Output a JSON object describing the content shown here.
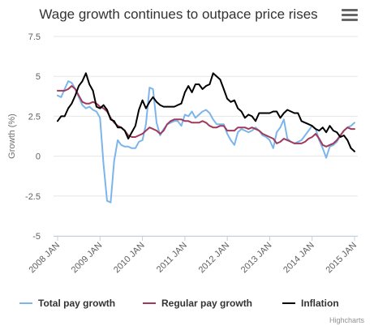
{
  "chart_data": {
    "type": "line",
    "title": "Wage growth continues to outpace price rises",
    "ylabel": "Growth (%)",
    "ylim": [
      -5,
      7.5
    ],
    "y_ticks": [
      "-5",
      "-2.5",
      "0",
      "2.5",
      "5",
      "7.5"
    ],
    "x_ticks": [
      "2008 JAN",
      "2009 JAN",
      "2010 JAN",
      "2011 JAN",
      "2012 JAN",
      "2013 JAN",
      "2014 JAN",
      "2015 JAN"
    ],
    "xlim": [
      "2008-01",
      "2015-01"
    ],
    "grid": true,
    "legend_position": "bottom",
    "credits": "Highcharts",
    "x": [
      "2008-01",
      "2008-02",
      "2008-03",
      "2008-04",
      "2008-05",
      "2008-06",
      "2008-07",
      "2008-08",
      "2008-09",
      "2008-10",
      "2008-11",
      "2008-12",
      "2009-01",
      "2009-02",
      "2009-03",
      "2009-04",
      "2009-05",
      "2009-06",
      "2009-07",
      "2009-08",
      "2009-09",
      "2009-10",
      "2009-11",
      "2009-12",
      "2010-01",
      "2010-02",
      "2010-03",
      "2010-04",
      "2010-05",
      "2010-06",
      "2010-07",
      "2010-08",
      "2010-09",
      "2010-10",
      "2010-11",
      "2010-12",
      "2011-01",
      "2011-02",
      "2011-03",
      "2011-04",
      "2011-05",
      "2011-06",
      "2011-07",
      "2011-08",
      "2011-09",
      "2011-10",
      "2011-11",
      "2011-12",
      "2012-01",
      "2012-02",
      "2012-03",
      "2012-04",
      "2012-05",
      "2012-06",
      "2012-07",
      "2012-08",
      "2012-09",
      "2012-10",
      "2012-11",
      "2012-12",
      "2013-01",
      "2013-02",
      "2013-03",
      "2013-04",
      "2013-05",
      "2013-06",
      "2013-07",
      "2013-08",
      "2013-09",
      "2013-10",
      "2013-11",
      "2013-12",
      "2014-01",
      "2014-02",
      "2014-03",
      "2014-04",
      "2014-05",
      "2014-06",
      "2014-07",
      "2014-08",
      "2014-09",
      "2014-10",
      "2014-11",
      "2014-12",
      "2015-01"
    ],
    "series": [
      {
        "name": "Total pay growth",
        "color": "#7cb5ec",
        "values": [
          3.8,
          3.7,
          4.2,
          4.7,
          4.6,
          4.2,
          3.7,
          3.2,
          3.0,
          3.1,
          2.9,
          2.8,
          2.4,
          -0.5,
          -2.8,
          -2.9,
          -0.3,
          1.0,
          0.7,
          0.6,
          0.6,
          0.5,
          0.5,
          0.9,
          1.0,
          2.0,
          4.3,
          4.2,
          2.1,
          1.3,
          1.7,
          2.0,
          2.1,
          2.2,
          2.2,
          1.9,
          2.6,
          2.5,
          2.8,
          2.4,
          2.6,
          2.8,
          2.9,
          2.7,
          2.3,
          2.0,
          2.0,
          2.0,
          1.4,
          1.0,
          0.7,
          1.5,
          1.7,
          1.6,
          1.5,
          1.6,
          1.8,
          1.6,
          1.3,
          1.2,
          1.0,
          0.5,
          1.5,
          1.8,
          2.3,
          1.1,
          0.9,
          0.8,
          0.9,
          1.0,
          1.3,
          1.6,
          1.9,
          1.7,
          1.0,
          0.5,
          -0.1,
          0.6,
          0.7,
          0.9,
          1.3,
          1.6,
          1.8,
          1.9,
          2.1
        ]
      },
      {
        "name": "Regular pay growth",
        "color": "#a03a5c",
        "values": [
          4.1,
          4.1,
          4.1,
          4.2,
          4.4,
          4.2,
          3.8,
          3.4,
          3.3,
          3.3,
          3.4,
          3.3,
          3.1,
          3.0,
          2.8,
          2.4,
          2.1,
          1.9,
          1.8,
          1.6,
          1.3,
          1.2,
          1.2,
          1.3,
          1.4,
          1.6,
          1.8,
          1.7,
          1.6,
          1.4,
          1.6,
          2.0,
          2.2,
          2.3,
          2.3,
          2.3,
          2.2,
          2.2,
          2.1,
          2.1,
          2.1,
          2.2,
          2.1,
          1.9,
          1.8,
          1.8,
          1.9,
          1.9,
          1.6,
          1.6,
          1.6,
          1.8,
          1.8,
          1.8,
          1.7,
          1.8,
          1.7,
          1.6,
          1.4,
          1.3,
          1.2,
          1.1,
          0.8,
          0.9,
          1.1,
          1.0,
          0.9,
          0.8,
          0.8,
          0.8,
          0.9,
          1.1,
          1.2,
          1.4,
          1.1,
          0.7,
          0.6,
          0.7,
          0.8,
          1.0,
          1.3,
          1.6,
          1.8,
          1.7,
          1.7
        ]
      },
      {
        "name": "Inflation",
        "color": "#000000",
        "values": [
          2.2,
          2.5,
          2.5,
          3.0,
          3.3,
          3.8,
          4.4,
          4.7,
          5.2,
          4.5,
          4.1,
          3.1,
          3.0,
          3.2,
          2.9,
          2.3,
          2.2,
          1.8,
          1.8,
          1.6,
          1.1,
          1.5,
          1.9,
          2.9,
          3.5,
          3.0,
          3.4,
          3.7,
          3.4,
          3.2,
          3.1,
          3.1,
          3.1,
          3.1,
          3.2,
          3.3,
          4.0,
          4.4,
          4.0,
          4.5,
          4.5,
          4.2,
          4.4,
          4.5,
          5.2,
          5.0,
          4.8,
          4.2,
          3.6,
          3.4,
          3.5,
          3.0,
          2.8,
          2.4,
          2.6,
          2.5,
          2.2,
          2.7,
          2.7,
          2.7,
          2.7,
          2.8,
          2.8,
          2.4,
          2.7,
          2.9,
          2.8,
          2.7,
          2.7,
          2.2,
          2.1,
          2.0,
          1.9,
          1.7,
          1.6,
          1.8,
          1.5,
          1.9,
          1.6,
          1.5,
          1.2,
          1.3,
          1.0,
          0.5,
          0.3
        ]
      }
    ]
  }
}
